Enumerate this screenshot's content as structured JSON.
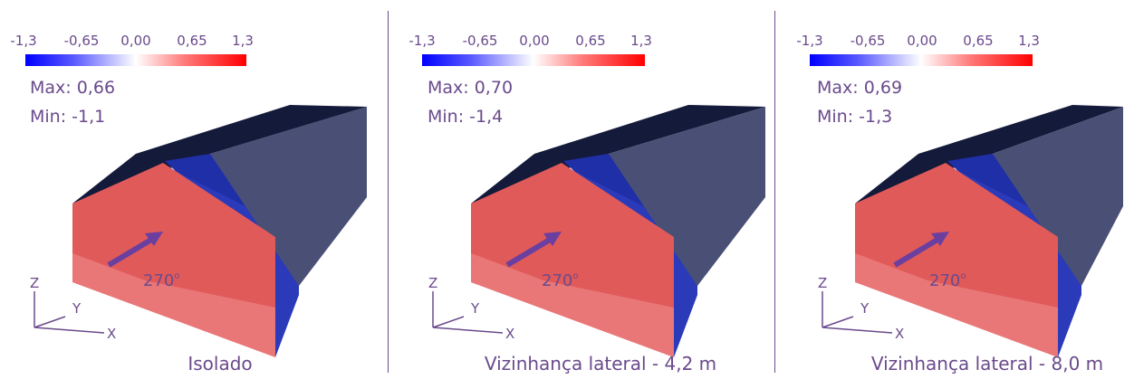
{
  "colors": {
    "text": "#6a4a8c",
    "scale_negative": "#0000ff",
    "scale_zero": "#ffffff",
    "scale_positive": "#ff0000",
    "arrow": "#6a3fa0",
    "roof_dark": "#141a3a",
    "roof_mid": "#3a4a8e",
    "side_blue": "#1a2ea6",
    "side_gray": "#5b5f80",
    "front_red": "#e05a5a"
  },
  "colorbar": {
    "ticks": [
      "-1,3",
      "-0,65",
      "0,00",
      "0,65",
      "1,3"
    ],
    "min": -1.3,
    "max": 1.3
  },
  "panels": [
    {
      "max_label": "Max: 0,66",
      "min_label": "Min: -1,1",
      "caption": "Isolado",
      "wind_label": "270",
      "wind_unit": "o",
      "axis_z": "Z",
      "axis_y": "Y",
      "axis_x": "X"
    },
    {
      "max_label": "Max: 0,70",
      "min_label": "Min: -1,4",
      "caption": "Vizinhança lateral - 4,2 m",
      "wind_label": "270",
      "wind_unit": "o",
      "axis_z": "Z",
      "axis_y": "Y",
      "axis_x": "X"
    },
    {
      "max_label": "Max: 0,69",
      "min_label": "Min: -1,3",
      "caption": "Vizinhança lateral - 8,0 m",
      "wind_label": "270",
      "wind_unit": "o",
      "axis_z": "Z",
      "axis_y": "Y",
      "axis_x": "X"
    }
  ]
}
